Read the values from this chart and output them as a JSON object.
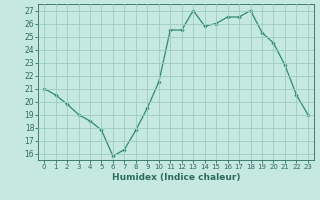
{
  "x": [
    0,
    1,
    2,
    3,
    4,
    5,
    6,
    7,
    8,
    9,
    10,
    11,
    12,
    13,
    14,
    15,
    16,
    17,
    18,
    19,
    20,
    21,
    22,
    23
  ],
  "y": [
    21,
    20.5,
    19.8,
    19,
    18.5,
    17.8,
    15.8,
    16.3,
    17.8,
    19.5,
    21.5,
    25.5,
    25.5,
    27,
    25.8,
    26,
    26.5,
    26.5,
    27,
    25.3,
    24.5,
    22.8,
    20.5,
    19
  ],
  "line_color": "#2e8b6e",
  "marker": "D",
  "marker_size": 1.8,
  "bg_color": "#c5e8e0",
  "grid_color": "#9cccc0",
  "tick_color": "#2e6b5e",
  "xlabel": "Humidex (Indice chaleur)",
  "ylim": [
    15.5,
    27.5
  ],
  "xlim": [
    -0.5,
    23.5
  ],
  "yticks": [
    16,
    17,
    18,
    19,
    20,
    21,
    22,
    23,
    24,
    25,
    26,
    27
  ],
  "xticks": [
    0,
    1,
    2,
    3,
    4,
    5,
    6,
    7,
    8,
    9,
    10,
    11,
    12,
    13,
    14,
    15,
    16,
    17,
    18,
    19,
    20,
    21,
    22,
    23
  ]
}
